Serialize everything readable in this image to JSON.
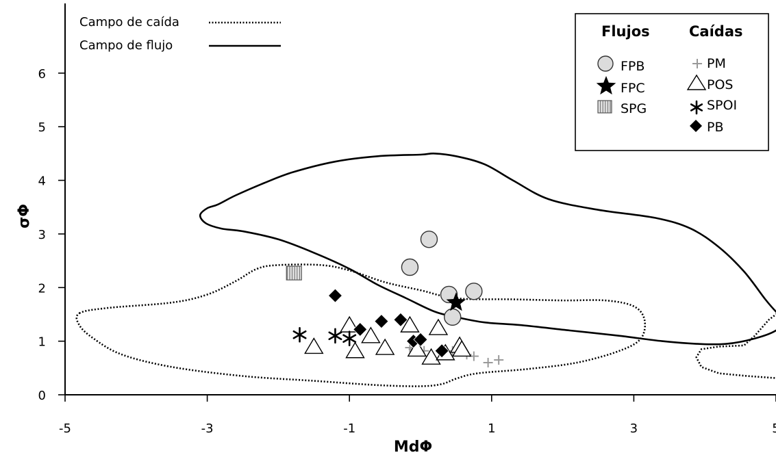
{
  "chart_data": {
    "type": "scatter",
    "xlabel": "MdΦ",
    "ylabel": "σΦ",
    "xlim": [
      -5,
      5
    ],
    "ylim": [
      0,
      7.3
    ],
    "x_ticks": [
      "-5",
      "-3",
      "-1",
      "1",
      "3",
      "5"
    ],
    "y_ticks": [
      "0",
      "1",
      "2",
      "3",
      "4",
      "5",
      "6"
    ],
    "grid": false,
    "legend_position": "top-right",
    "field_legend": [
      {
        "name": "Campo de caída",
        "style": "dotted"
      },
      {
        "name": "Campo de flujo",
        "style": "solid"
      }
    ],
    "legend_groups": [
      {
        "title": "Flujos",
        "entries": [
          "FPB",
          "FPC",
          "SPG"
        ]
      },
      {
        "title": "Caídas",
        "entries": [
          "PM",
          "POS",
          "SPOI",
          "PB"
        ]
      }
    ],
    "fields": [
      {
        "name": "Campo de flujo",
        "style": "solid",
        "points": [
          [
            -2.85,
            3.55
          ],
          [
            -2.6,
            3.72
          ],
          [
            -2.2,
            3.95
          ],
          [
            -1.8,
            4.15
          ],
          [
            -1.2,
            4.35
          ],
          [
            -0.6,
            4.45
          ],
          [
            0.0,
            4.48
          ],
          [
            0.2,
            4.5
          ],
          [
            0.5,
            4.45
          ],
          [
            0.9,
            4.3
          ],
          [
            1.3,
            4.0
          ],
          [
            1.8,
            3.65
          ],
          [
            2.5,
            3.45
          ],
          [
            3.3,
            3.3
          ],
          [
            3.8,
            3.1
          ],
          [
            4.2,
            2.75
          ],
          [
            4.55,
            2.3
          ],
          [
            4.85,
            1.78
          ],
          [
            5.0,
            1.55
          ],
          [
            5.12,
            1.4
          ],
          [
            5.0,
            1.2
          ],
          [
            4.7,
            1.05
          ],
          [
            4.3,
            0.95
          ],
          [
            3.9,
            0.95
          ],
          [
            3.4,
            1.0
          ],
          [
            2.8,
            1.1
          ],
          [
            2.1,
            1.2
          ],
          [
            1.4,
            1.3
          ],
          [
            0.9,
            1.35
          ],
          [
            0.5,
            1.45
          ],
          [
            0.2,
            1.55
          ],
          [
            -0.2,
            1.8
          ],
          [
            -0.6,
            2.05
          ],
          [
            -1.0,
            2.35
          ],
          [
            -1.5,
            2.65
          ],
          [
            -2.0,
            2.9
          ],
          [
            -2.5,
            3.05
          ],
          [
            -2.8,
            3.1
          ],
          [
            -3.02,
            3.2
          ],
          [
            -3.1,
            3.35
          ],
          [
            -3.0,
            3.48
          ]
        ]
      },
      {
        "name": "Campo de caída",
        "style": "dotted",
        "points": [
          [
            -4.8,
            1.52
          ],
          [
            -4.4,
            1.62
          ],
          [
            -3.5,
            1.72
          ],
          [
            -3.0,
            1.87
          ],
          [
            -2.6,
            2.12
          ],
          [
            -2.3,
            2.35
          ],
          [
            -2.0,
            2.42
          ],
          [
            -1.4,
            2.42
          ],
          [
            -1.0,
            2.32
          ],
          [
            -0.5,
            2.1
          ],
          [
            0.0,
            1.95
          ],
          [
            0.5,
            1.8
          ],
          [
            1.3,
            1.78
          ],
          [
            2.0,
            1.76
          ],
          [
            2.6,
            1.76
          ],
          [
            3.0,
            1.65
          ],
          [
            3.15,
            1.4
          ],
          [
            3.1,
            1.05
          ],
          [
            2.8,
            0.82
          ],
          [
            2.2,
            0.6
          ],
          [
            1.5,
            0.48
          ],
          [
            0.8,
            0.4
          ],
          [
            0.5,
            0.3
          ],
          [
            0.3,
            0.2
          ],
          [
            0.0,
            0.16
          ],
          [
            -0.6,
            0.18
          ],
          [
            -1.5,
            0.26
          ],
          [
            -2.5,
            0.35
          ],
          [
            -3.5,
            0.52
          ],
          [
            -4.2,
            0.75
          ],
          [
            -4.6,
            1.05
          ],
          [
            -4.8,
            1.3
          ]
        ]
      },
      {
        "name": "Campo de caída (segmento derecho)",
        "style": "dotted",
        "points": [
          [
            5.12,
            1.62
          ],
          [
            4.9,
            1.4
          ],
          [
            4.7,
            1.1
          ],
          [
            4.55,
            0.92
          ],
          [
            4.2,
            0.9
          ],
          [
            3.95,
            0.85
          ],
          [
            3.88,
            0.7
          ],
          [
            3.95,
            0.52
          ],
          [
            4.2,
            0.4
          ],
          [
            4.6,
            0.35
          ],
          [
            5.12,
            0.3
          ]
        ]
      }
    ],
    "series": [
      {
        "name": "FPB",
        "marker": "circle",
        "points": [
          [
            0.12,
            2.9
          ],
          [
            -0.15,
            2.38
          ],
          [
            0.4,
            1.87
          ],
          [
            0.75,
            1.93
          ],
          [
            0.45,
            1.45
          ]
        ]
      },
      {
        "name": "FPC",
        "marker": "star",
        "points": [
          [
            0.5,
            1.72
          ]
        ]
      },
      {
        "name": "SPG",
        "marker": "hatched-square",
        "points": [
          [
            -1.78,
            2.27
          ]
        ]
      },
      {
        "name": "PM",
        "marker": "plus",
        "points": [
          [
            -0.15,
            0.88
          ],
          [
            -0.1,
            0.85
          ],
          [
            0.05,
            0.82
          ],
          [
            0.3,
            0.85
          ],
          [
            0.45,
            0.82
          ],
          [
            0.65,
            0.75
          ],
          [
            0.75,
            0.72
          ],
          [
            0.95,
            0.6
          ],
          [
            1.1,
            0.65
          ]
        ]
      },
      {
        "name": "POS",
        "marker": "triangle",
        "points": [
          [
            -1.5,
            0.9
          ],
          [
            -1.0,
            1.3
          ],
          [
            -0.92,
            0.82
          ],
          [
            -0.7,
            1.1
          ],
          [
            -0.5,
            0.88
          ],
          [
            -0.15,
            1.3
          ],
          [
            -0.05,
            0.85
          ],
          [
            0.15,
            0.7
          ],
          [
            0.25,
            1.25
          ],
          [
            0.35,
            0.78
          ],
          [
            0.55,
            0.92
          ],
          [
            0.58,
            0.85
          ]
        ]
      },
      {
        "name": "SPOI",
        "marker": "asterisk",
        "points": [
          [
            -1.7,
            1.12
          ],
          [
            -1.2,
            1.1
          ],
          [
            -1.0,
            1.05
          ]
        ]
      },
      {
        "name": "PB",
        "marker": "diamond",
        "points": [
          [
            -1.2,
            1.85
          ],
          [
            -0.85,
            1.22
          ],
          [
            -0.55,
            1.37
          ],
          [
            -0.28,
            1.4
          ],
          [
            -0.1,
            1.0
          ],
          [
            0.0,
            1.03
          ],
          [
            0.3,
            0.82
          ]
        ]
      }
    ]
  }
}
